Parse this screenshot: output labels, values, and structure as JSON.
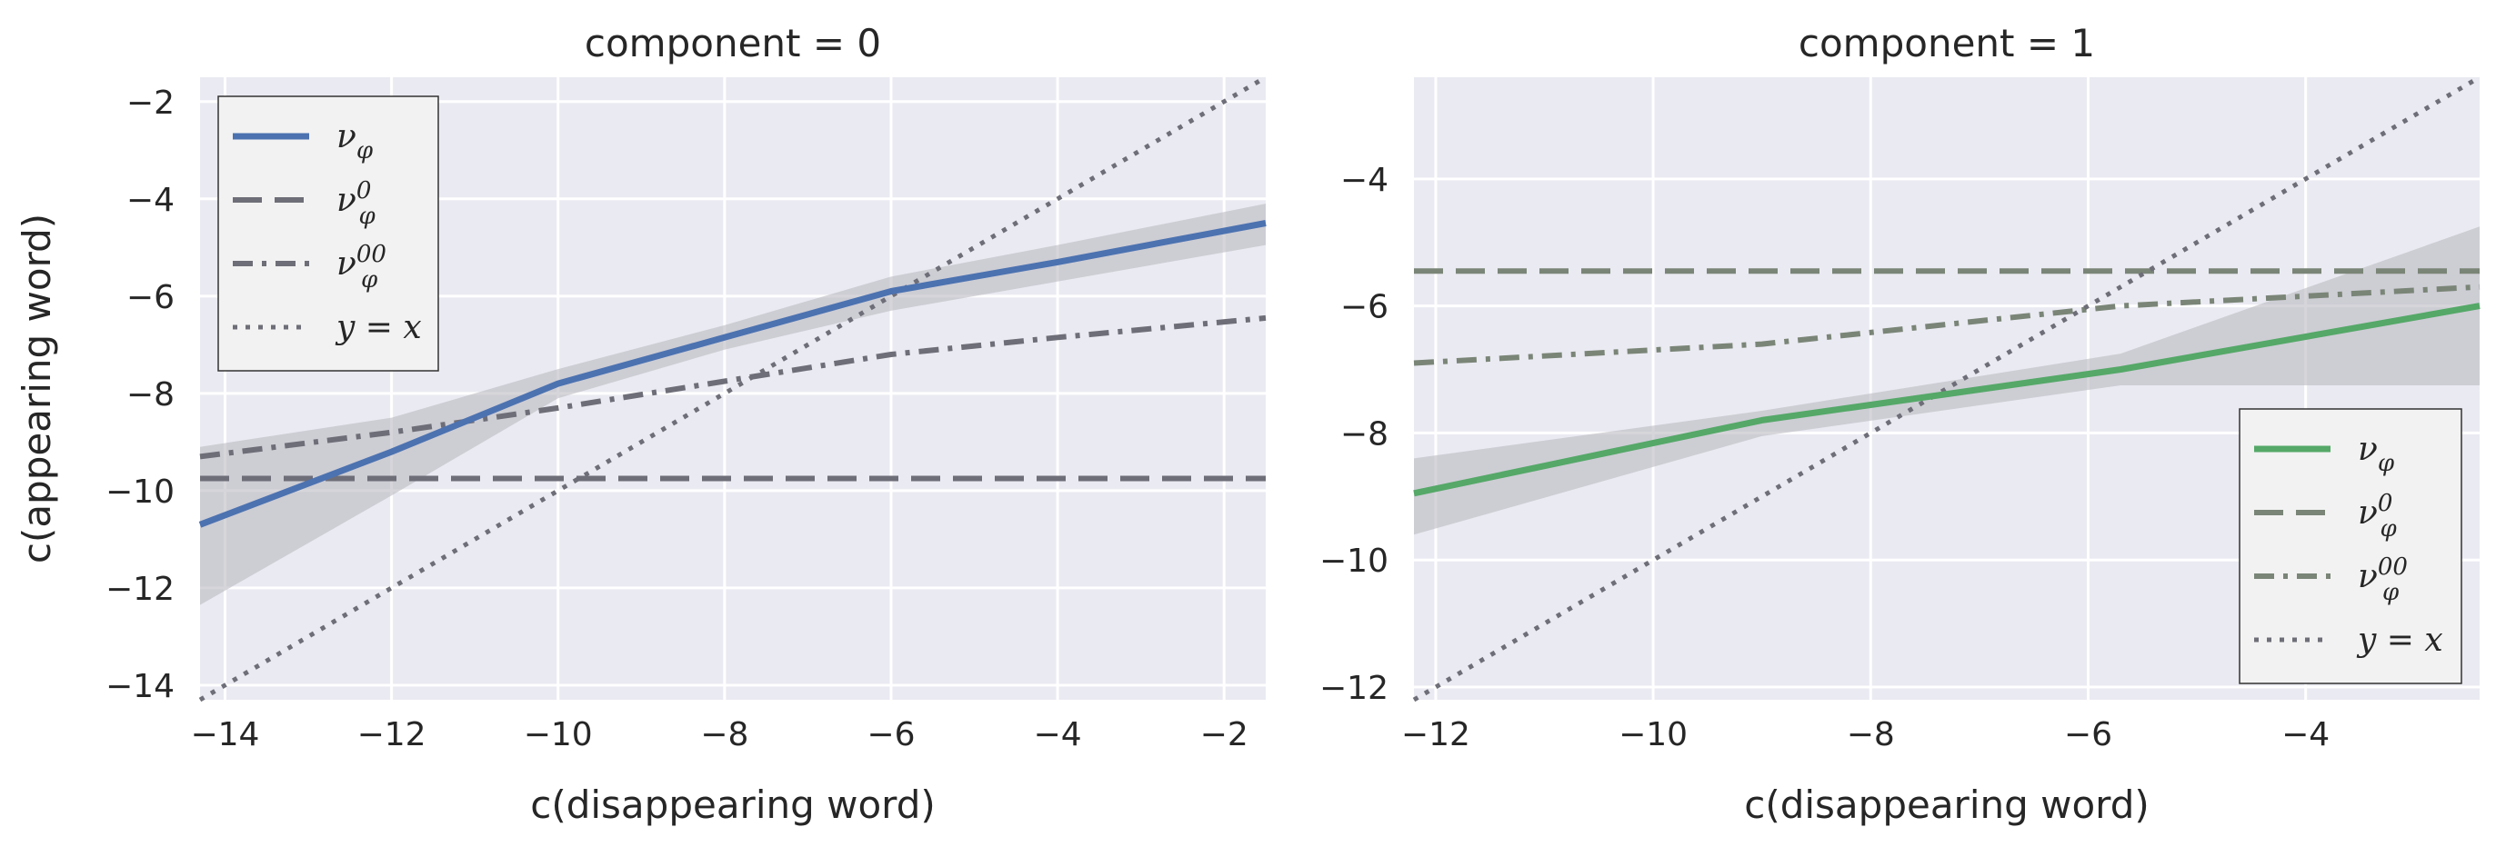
{
  "colors": {
    "background": "#eaeaf2",
    "grid": "#ffffff",
    "blue": "#4c72b0",
    "green": "#55a868",
    "gray": "#6e6e78",
    "graygreen": "#7a8577",
    "band": "#b4b5bb",
    "legend_bg": "#f2f2f2",
    "legend_edge": "#333333"
  },
  "chart_data": [
    {
      "type": "line",
      "title": "component = 0",
      "xlabel": "c(disappearing word)",
      "ylabel": "c(appearing word)",
      "xlim": [
        -14.3,
        -1.5
      ],
      "ylim": [
        -14.3,
        -1.5
      ],
      "xticks": [
        -14,
        -12,
        -10,
        -8,
        -6,
        -4,
        -2
      ],
      "yticks": [
        -14,
        -12,
        -10,
        -8,
        -6,
        -4,
        -2
      ],
      "xtick_labels": [
        "−14",
        "−12",
        "−10",
        "−8",
        "−6",
        "−4",
        "−2"
      ],
      "ytick_labels": [
        "−14",
        "−12",
        "−10",
        "−8",
        "−6",
        "−4",
        "−2"
      ],
      "grid": true,
      "legend_position": "upper-left",
      "series": [
        {
          "name": "ν_φ",
          "style": "solid",
          "color": "blue",
          "x": [
            -14.3,
            -12,
            -10,
            -8,
            -6,
            -4,
            -1.5
          ],
          "y": [
            -10.7,
            -9.2,
            -7.8,
            -6.85,
            -5.9,
            -5.3,
            -4.5
          ]
        },
        {
          "name": "ν_φ^0",
          "style": "dashed",
          "color": "gray",
          "x": [
            -14.3,
            -1.5
          ],
          "y": [
            -9.75,
            -9.75
          ]
        },
        {
          "name": "ν_φ^00",
          "style": "dashdot",
          "color": "gray",
          "x": [
            -14.3,
            -12,
            -10,
            -8,
            -6,
            -4,
            -1.5
          ],
          "y": [
            -9.3,
            -8.8,
            -8.3,
            -7.75,
            -7.2,
            -6.85,
            -6.45
          ]
        },
        {
          "name": "y = x",
          "style": "dotted",
          "color": "gray",
          "x": [
            -14.3,
            -1.5
          ],
          "y": [
            -14.3,
            -1.5
          ]
        }
      ],
      "band": {
        "x": [
          -14.3,
          -12,
          -10,
          -8,
          -6,
          -4,
          -1.5
        ],
        "upper": [
          -9.1,
          -8.5,
          -7.5,
          -6.6,
          -5.6,
          -4.95,
          -4.1
        ],
        "lower": [
          -12.35,
          -10.1,
          -8.1,
          -7.1,
          -6.3,
          -5.7,
          -4.95
        ]
      }
    },
    {
      "type": "line",
      "title": "component = 1",
      "xlabel": "c(disappearing word)",
      "ylabel": "",
      "xlim": [
        -12.2,
        -2.4
      ],
      "ylim": [
        -12.2,
        -2.4
      ],
      "xticks": [
        -12,
        -10,
        -8,
        -6,
        -4
      ],
      "yticks": [
        -12,
        -10,
        -8,
        -6,
        -4
      ],
      "xtick_labels": [
        "−12",
        "−10",
        "−8",
        "−6",
        "−4"
      ],
      "ytick_labels": [
        "−12",
        "−10",
        "−8",
        "−6",
        "−4"
      ],
      "grid": true,
      "legend_position": "lower-right",
      "series": [
        {
          "name": "ν_φ",
          "style": "solid",
          "color": "green",
          "x": [
            -12.2,
            -9,
            -5.7,
            -2.4
          ],
          "y": [
            -8.95,
            -7.8,
            -7.0,
            -6.0
          ]
        },
        {
          "name": "ν_φ^0",
          "style": "dashed",
          "color": "graygreen",
          "x": [
            -12.2,
            -2.4
          ],
          "y": [
            -5.45,
            -5.45
          ]
        },
        {
          "name": "ν_φ^00",
          "style": "dashdot",
          "color": "graygreen",
          "x": [
            -12.2,
            -9,
            -5.7,
            -2.4
          ],
          "y": [
            -6.9,
            -6.6,
            -6.0,
            -5.7
          ]
        },
        {
          "name": "y = x",
          "style": "dotted",
          "color": "gray",
          "x": [
            -12.2,
            -2.4
          ],
          "y": [
            -12.2,
            -2.4
          ]
        }
      ],
      "band": {
        "x": [
          -12.2,
          -9,
          -5.7,
          -2.4
        ],
        "upper": [
          -8.4,
          -7.65,
          -6.75,
          -4.75
        ],
        "lower": [
          -9.6,
          -8.05,
          -7.25,
          -7.25
        ]
      }
    }
  ]
}
